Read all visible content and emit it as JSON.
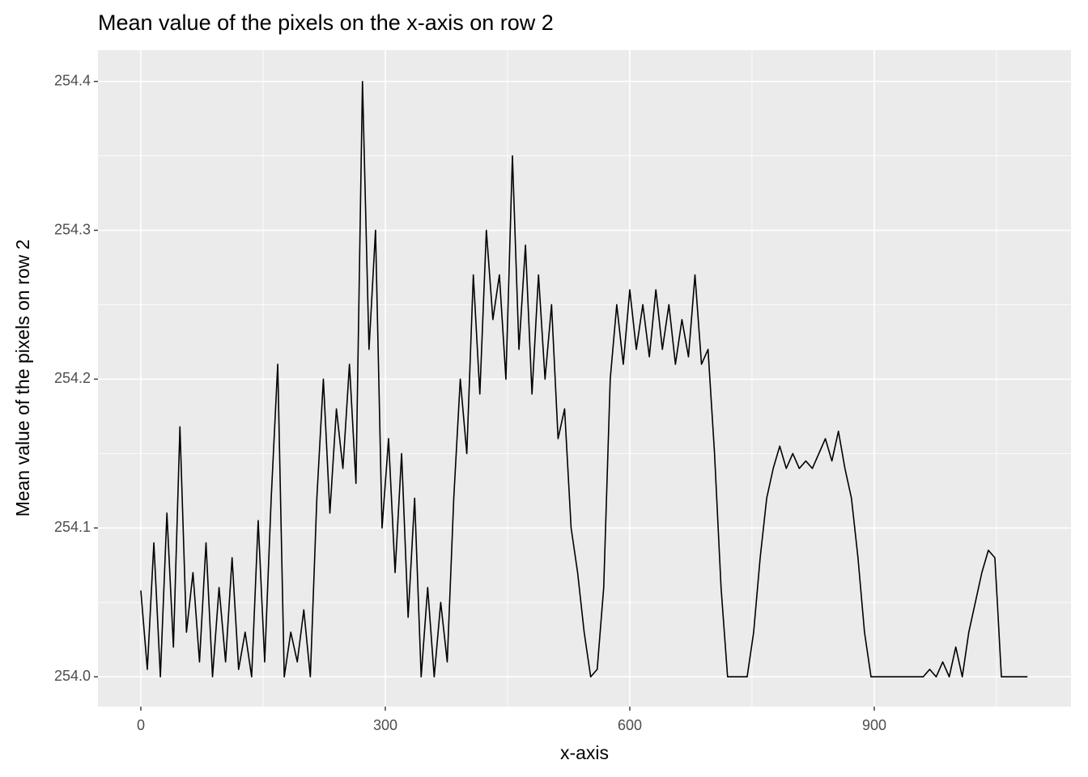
{
  "chart_data": {
    "type": "line",
    "title": "Mean value of the pixels on the x-axis on row 2",
    "x_label": "x-axis",
    "y_label": "Mean value of the pixels on row 2",
    "grid": true,
    "xlim": [
      -52.6,
      1141.4
    ],
    "ylim": [
      253.98,
      254.421
    ],
    "xticks": [
      0,
      300,
      600,
      900
    ],
    "yticks": [
      {
        "value": 254,
        "label": "254.0"
      },
      254.1,
      254.2,
      254.3,
      254.4
    ],
    "series": [
      {
        "color": "#000000",
        "x": [
          0,
          8,
          16,
          24,
          32,
          40,
          48,
          56,
          64,
          72,
          80,
          88,
          96,
          104,
          112,
          120,
          128,
          136,
          144,
          152,
          160,
          168,
          176,
          184,
          192,
          200,
          208,
          216,
          224,
          232,
          240,
          248,
          256,
          264,
          272,
          280,
          288,
          296,
          304,
          312,
          320,
          328,
          336,
          344,
          352,
          360,
          368,
          376,
          384,
          392,
          400,
          408,
          416,
          424,
          432,
          440,
          448,
          456,
          464,
          472,
          480,
          488,
          496,
          504,
          512,
          520,
          528,
          536,
          544,
          552,
          560,
          568,
          576,
          584,
          592,
          600,
          608,
          616,
          624,
          632,
          640,
          648,
          656,
          664,
          672,
          680,
          688,
          696,
          704,
          712,
          720,
          728,
          736,
          744,
          752,
          760,
          768,
          776,
          784,
          792,
          800,
          808,
          816,
          824,
          832,
          840,
          848,
          856,
          864,
          872,
          880,
          888,
          896,
          904,
          912,
          920,
          928,
          936,
          944,
          952,
          960,
          968,
          976,
          984,
          992,
          1000,
          1008,
          1016,
          1024,
          1032,
          1040,
          1048,
          1056,
          1064,
          1072,
          1080,
          1088
        ],
        "values": [
          254.058,
          254.005,
          254.09,
          254.0,
          254.11,
          254.02,
          254.168,
          254.03,
          254.07,
          254.01,
          254.09,
          254.0,
          254.06,
          254.01,
          254.08,
          254.005,
          254.03,
          254.0,
          254.105,
          254.01,
          254.12,
          254.21,
          254.0,
          254.03,
          254.01,
          254.045,
          254.0,
          254.12,
          254.2,
          254.11,
          254.18,
          254.14,
          254.21,
          254.13,
          254.4,
          254.22,
          254.3,
          254.1,
          254.16,
          254.07,
          254.15,
          254.04,
          254.12,
          254.0,
          254.06,
          254.0,
          254.05,
          254.01,
          254.12,
          254.2,
          254.15,
          254.27,
          254.19,
          254.3,
          254.24,
          254.27,
          254.2,
          254.35,
          254.22,
          254.29,
          254.19,
          254.27,
          254.2,
          254.25,
          254.16,
          254.18,
          254.1,
          254.07,
          254.03,
          254.0,
          254.005,
          254.06,
          254.2,
          254.25,
          254.21,
          254.26,
          254.22,
          254.25,
          254.215,
          254.26,
          254.22,
          254.25,
          254.21,
          254.24,
          254.215,
          254.27,
          254.21,
          254.22,
          254.15,
          254.06,
          254.0,
          254.0,
          254.0,
          254.0,
          254.03,
          254.08,
          254.12,
          254.14,
          254.155,
          254.14,
          254.15,
          254.14,
          254.145,
          254.14,
          254.15,
          254.16,
          254.145,
          254.165,
          254.14,
          254.12,
          254.08,
          254.03,
          254.0,
          254.0,
          254.0,
          254.0,
          254.0,
          254.0,
          254.0,
          254.0,
          254.0,
          254.005,
          254.0,
          254.01,
          254.0,
          254.02,
          254.0,
          254.03,
          254.05,
          254.07,
          254.085,
          254.08,
          254.0,
          254.0,
          254.0,
          254.0,
          254.0
        ]
      }
    ]
  }
}
